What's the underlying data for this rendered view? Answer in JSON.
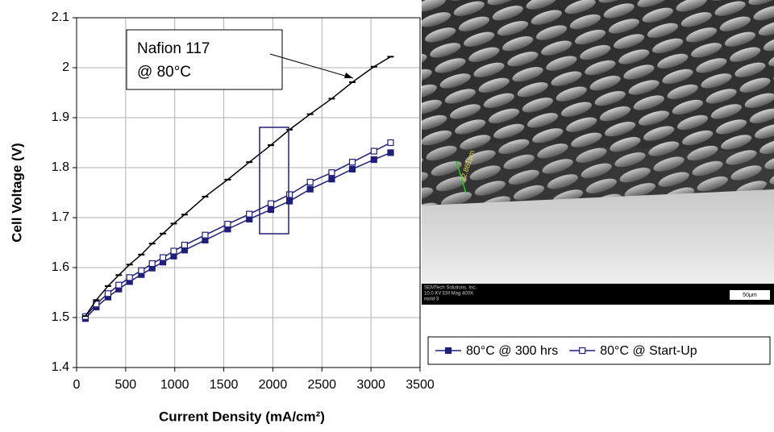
{
  "chart_data": {
    "type": "line",
    "y_label": "Cell Voltage (V)",
    "x_label": "Current Density (mA/cm²)",
    "annotation": [
      "Nafion 117",
      "@ 80°C"
    ],
    "x": [
      90,
      200,
      320,
      430,
      540,
      660,
      770,
      880,
      990,
      1100,
      1310,
      1540,
      1760,
      1980,
      2170,
      2380,
      2600,
      2810,
      3030,
      3200
    ],
    "series": [
      {
        "name": "80°C @ 300 hrs",
        "color": "#1f1f7a",
        "marker": "filled-square",
        "values": [
          1.498,
          1.521,
          1.541,
          1.557,
          1.572,
          1.586,
          1.599,
          1.611,
          1.623,
          1.635,
          1.655,
          1.677,
          1.697,
          1.716,
          1.733,
          1.757,
          1.777,
          1.797,
          1.816,
          1.83
        ]
      },
      {
        "name": "80°C @ Start-Up",
        "color": "#1f1f7a",
        "marker": "open-square",
        "values": [
          1.502,
          1.527,
          1.548,
          1.565,
          1.58,
          1.594,
          1.608,
          1.62,
          1.633,
          1.645,
          1.665,
          1.687,
          1.707,
          1.728,
          1.746,
          1.771,
          1.79,
          1.811,
          1.833,
          1.85
        ]
      },
      {
        "color": "#000000",
        "marker": "dash",
        "values": [
          1.503,
          1.535,
          1.563,
          1.585,
          1.606,
          1.626,
          1.648,
          1.668,
          1.688,
          1.706,
          1.742,
          1.776,
          1.811,
          1.845,
          1.876,
          1.907,
          1.938,
          1.971,
          2.002,
          2.022
        ]
      }
    ],
    "xlim": [
      0,
      3500
    ],
    "xticks": [
      0,
      500,
      1000,
      1500,
      2000,
      2500,
      3000,
      3500
    ],
    "ylim": [
      1.4,
      2.1
    ],
    "yticks": [
      1.4,
      1.5,
      1.6,
      1.7,
      1.8,
      1.9,
      2,
      2.1
    ],
    "grid": true
  },
  "image": {
    "measurement": "22.861μm",
    "info": [
      "SEMTech Solutions, Inc.",
      "10.0 KV EM Mag 400X",
      "mold-3"
    ],
    "scale": "50μm"
  }
}
